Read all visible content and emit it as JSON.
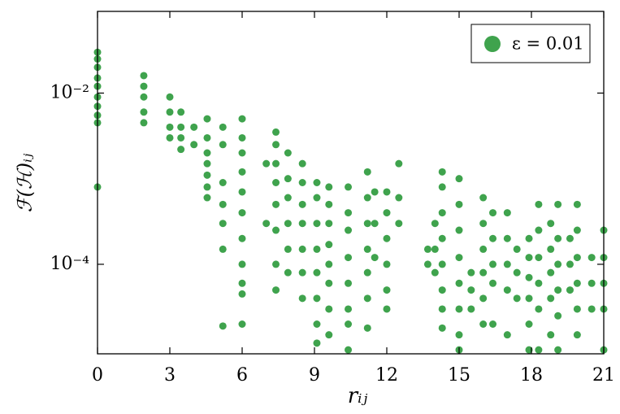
{
  "chart_data": {
    "type": "scatter",
    "xlabel": "rᵢⱼ",
    "ylabel": "ℱ(ℋ)ᵢⱼ",
    "xlim": [
      0,
      21
    ],
    "ylim": [
      9e-06,
      0.09
    ],
    "log_y": true,
    "grid": false,
    "legend": "upper right",
    "xticks": [
      0,
      3,
      6,
      9,
      12,
      15,
      18,
      21
    ],
    "yticks": [
      {
        "value": 0.0001,
        "label": "10⁻⁴"
      },
      {
        "value": 0.01,
        "label": "10⁻²"
      }
    ],
    "series": [
      {
        "name": "ε = 0.01",
        "color": "#3fa34d",
        "x": [
          0,
          0,
          0,
          0,
          0,
          0,
          0,
          0,
          0,
          0,
          1.92,
          1.92,
          1.92,
          1.92,
          1.92,
          3,
          3,
          3,
          3,
          3.46,
          3.46,
          3.46,
          3.46,
          4,
          4,
          4.55,
          4.55,
          4.55,
          4.55,
          4.55,
          4.55,
          4.55,
          5.2,
          5.2,
          5.2,
          5.2,
          5.2,
          5.2,
          5.2,
          6,
          6,
          6,
          6,
          6,
          6,
          6,
          6,
          6,
          6,
          6,
          7,
          7,
          7.4,
          7.4,
          7.4,
          7.4,
          7.4,
          7.4,
          7.4,
          7.4,
          7.9,
          7.9,
          7.9,
          7.9,
          7.9,
          7.9,
          8.5,
          8.5,
          8.5,
          8.5,
          8.5,
          8.5,
          8.5,
          9.1,
          9.1,
          9.1,
          9.1,
          9.1,
          9.1,
          9.1,
          9.1,
          9.6,
          9.6,
          9.6,
          9.6,
          9.6,
          9.6,
          9.6,
          9.6,
          10.4,
          10.4,
          10.4,
          10.4,
          10.4,
          10.4,
          10.4,
          10.4,
          11.2,
          11.2,
          11.2,
          11.2,
          11.2,
          11.2,
          11.2,
          11.5,
          11.5,
          11.5,
          12,
          12,
          12,
          12,
          12,
          12,
          12.5,
          12.5,
          12.5,
          13.7,
          13.7,
          14,
          14,
          14,
          14.3,
          14.3,
          14.3,
          14.3,
          14.3,
          14.3,
          14.3,
          14.3,
          15,
          15,
          15,
          15,
          15,
          15,
          15,
          15,
          15.5,
          15.5,
          15.5,
          16,
          16,
          16,
          16,
          16,
          16,
          16.4,
          16.4,
          16.4,
          16.4,
          16.4,
          17,
          17,
          17,
          17,
          17,
          17.4,
          17.4,
          17.4,
          17.9,
          17.9,
          17.9,
          17.9,
          17.9,
          17.9,
          18.3,
          18.3,
          18.3,
          18.3,
          18.3,
          18.3,
          18.8,
          18.8,
          18.8,
          18.8,
          18.8,
          19.1,
          19.1,
          19.1,
          19.1,
          19.1,
          19.1,
          19.6,
          19.6,
          19.6,
          19.9,
          19.9,
          19.9,
          19.9,
          19.9,
          19.9,
          20.5,
          20.5,
          20.5,
          21,
          21,
          21,
          21,
          21
        ],
        "values": [
          0.03,
          0.025,
          0.02,
          0.015,
          0.012,
          0.009,
          0.007,
          0.0055,
          0.0045,
          0.0008,
          0.016,
          0.012,
          0.009,
          0.006,
          0.0045,
          0.009,
          0.006,
          0.004,
          0.003,
          0.006,
          0.004,
          0.003,
          0.0022,
          0.004,
          0.0025,
          0.005,
          0.003,
          0.002,
          0.0015,
          0.0011,
          0.0008,
          0.0006,
          0.004,
          0.0025,
          0.0009,
          0.0005,
          0.0003,
          0.00015,
          1.9e-05,
          0.005,
          0.003,
          0.002,
          0.0012,
          0.0007,
          0.0004,
          0.0002,
          0.0001,
          6e-05,
          4.5e-05,
          2e-05,
          0.0003,
          0.0015,
          0.0035,
          0.0025,
          0.0015,
          0.0009,
          0.0005,
          0.00025,
          0.0001,
          5e-05,
          0.002,
          0.001,
          0.0006,
          0.0003,
          0.00015,
          8e-05,
          0.0015,
          0.0009,
          0.0005,
          0.0003,
          0.00015,
          8e-05,
          4e-05,
          0.0009,
          0.0006,
          0.0003,
          0.00015,
          8e-05,
          4e-05,
          2e-05,
          1.2e-05,
          0.0008,
          0.0005,
          0.0003,
          0.00017,
          0.0001,
          6e-05,
          3e-05,
          1.5e-05,
          0.0008,
          0.0004,
          0.00025,
          0.00012,
          6e-05,
          3e-05,
          2e-05,
          1e-05,
          0.0012,
          0.0006,
          0.0003,
          0.00015,
          8e-05,
          4e-05,
          1.8e-05,
          0.0007,
          0.0003,
          0.00012,
          0.0007,
          0.0004,
          0.0002,
          0.0001,
          5e-05,
          3e-05,
          0.0015,
          0.0006,
          0.0003,
          0.00015,
          0.0001,
          0.0003,
          0.00015,
          8e-05,
          0.0012,
          0.0008,
          0.0004,
          0.0002,
          0.0001,
          5e-05,
          3e-05,
          1.8e-05,
          0.001,
          0.0005,
          0.00025,
          0.00012,
          6e-05,
          3e-05,
          1.5e-05,
          1e-05,
          8e-05,
          5e-05,
          3e-05,
          0.0006,
          0.0003,
          0.00015,
          8e-05,
          4e-05,
          2e-05,
          0.0004,
          0.0002,
          0.0001,
          6e-05,
          2e-05,
          0.0004,
          0.0002,
          0.0001,
          5e-05,
          1.5e-05,
          0.00015,
          8e-05,
          4e-05,
          0.0002,
          0.00012,
          7e-05,
          4e-05,
          2e-05,
          1e-05,
          0.0005,
          0.00025,
          0.00012,
          6e-05,
          3e-05,
          1e-05,
          0.0003,
          0.00015,
          8e-05,
          4e-05,
          1.5e-05,
          0.0005,
          0.0002,
          0.0001,
          5e-05,
          2.5e-05,
          1e-05,
          0.0002,
          0.0001,
          5e-05,
          0.0005,
          0.00025,
          0.00012,
          6e-05,
          3e-05,
          1.5e-05,
          0.00012,
          6e-05,
          3e-05,
          0.00025,
          0.00012,
          6e-05,
          3e-05,
          1e-05
        ]
      }
    ]
  }
}
